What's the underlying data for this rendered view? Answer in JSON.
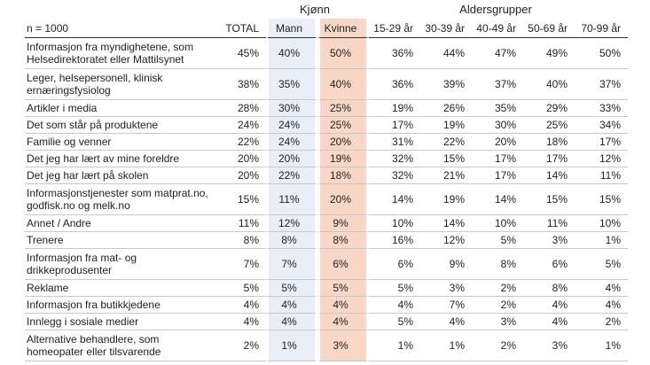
{
  "header": {
    "group_labels": [
      "Kjønn",
      "Aldersgrupper"
    ]
  },
  "table": {
    "columns": [
      "n = 1000",
      "TOTAL",
      "Mann",
      "Kvinne",
      "15-29 år",
      "30-39 år",
      "40-49 år",
      "50-69 år",
      "70-99 år"
    ],
    "rows": [
      [
        "Informasjon fra myndighetene, som\nHelsedirektoratet eller Mattilsynet",
        "45%",
        "40%",
        "50%",
        "36%",
        "44%",
        "47%",
        "49%",
        "50%"
      ],
      [
        "Leger, helsepersonell, klinisk\nernæringsfysiolog",
        "38%",
        "35%",
        "40%",
        "36%",
        "39%",
        "37%",
        "40%",
        "37%"
      ],
      [
        "Artikler i media",
        "28%",
        "30%",
        "25%",
        "19%",
        "26%",
        "35%",
        "29%",
        "33%"
      ],
      [
        "Det som står på produktene",
        "24%",
        "24%",
        "25%",
        "17%",
        "19%",
        "30%",
        "25%",
        "34%"
      ],
      [
        "Familie og venner",
        "22%",
        "24%",
        "20%",
        "31%",
        "22%",
        "20%",
        "18%",
        "17%"
      ],
      [
        "Det jeg har lært av mine foreldre",
        "20%",
        "20%",
        "19%",
        "32%",
        "15%",
        "17%",
        "17%",
        "12%"
      ],
      [
        "Det jeg har lært på skolen",
        "20%",
        "22%",
        "18%",
        "32%",
        "21%",
        "17%",
        "14%",
        "11%"
      ],
      [
        "Informasjonstjenester som matprat.no,\ngodfisk.no og melk.no",
        "15%",
        "11%",
        "20%",
        "14%",
        "19%",
        "14%",
        "15%",
        "15%"
      ],
      [
        "Annet / Andre",
        "11%",
        "12%",
        "9%",
        "10%",
        "14%",
        "10%",
        "11%",
        "10%"
      ],
      [
        "Trenere",
        "8%",
        "8%",
        "8%",
        "16%",
        "12%",
        "5%",
        "3%",
        "1%"
      ],
      [
        "Informasjon fra mat- og\ndrikkeprodusenter",
        "7%",
        "7%",
        "6%",
        "6%",
        "9%",
        "8%",
        "6%",
        "5%"
      ],
      [
        "Reklame",
        "5%",
        "5%",
        "5%",
        "5%",
        "3%",
        "2%",
        "8%",
        "4%"
      ],
      [
        "Informasjon fra butikkjedene",
        "4%",
        "4%",
        "4%",
        "4%",
        "7%",
        "2%",
        "4%",
        "4%"
      ],
      [
        "Innlegg i sosiale medier",
        "4%",
        "4%",
        "4%",
        "5%",
        "4%",
        "3%",
        "4%",
        "2%"
      ],
      [
        "Alternative behandlere, som\nhomeopater eller tilsvarende",
        "2%",
        "1%",
        "3%",
        "1%",
        "1%",
        "2%",
        "3%",
        "1%"
      ]
    ]
  }
}
